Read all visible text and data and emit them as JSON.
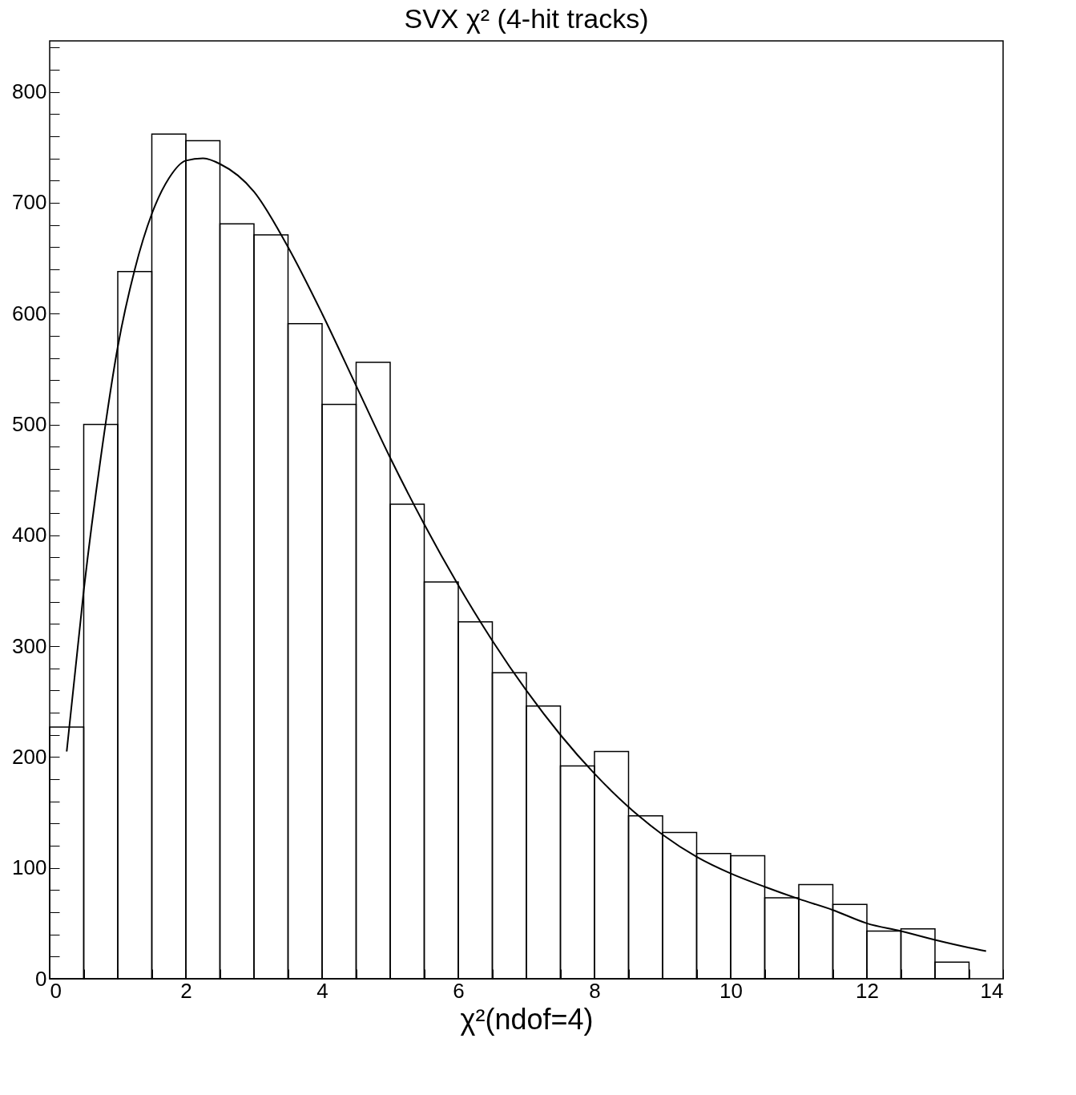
{
  "chart_data": {
    "type": "histogram",
    "title": "SVX χ² (4-hit tracks)",
    "xlabel": "χ²(ndof=4)",
    "bins": [
      0,
      0.5,
      1,
      1.5,
      2,
      2.5,
      3,
      3.5,
      4,
      4.5,
      5,
      5.5,
      6,
      6.5,
      7,
      7.5,
      8,
      8.5,
      9,
      9.5,
      10,
      10.5,
      11,
      11.5,
      12,
      12.5,
      13,
      13.5
    ],
    "values": [
      227,
      500,
      638,
      762,
      756,
      681,
      671,
      591,
      518,
      556,
      428,
      358,
      322,
      276,
      246,
      192,
      205,
      147,
      132,
      113,
      111,
      73,
      85,
      67,
      43,
      45,
      15
    ],
    "color": "#000000",
    "series": [
      {
        "type": "line",
        "color": "#000000",
        "x": [
          0.25,
          0.5,
          0.75,
          1,
          1.25,
          1.5,
          1.75,
          2,
          2.25,
          2.5,
          3,
          3.5,
          4,
          4.5,
          5,
          5.5,
          6,
          6.5,
          7,
          7.5,
          8,
          8.5,
          9,
          9.5,
          10,
          10.5,
          11,
          11.5,
          12,
          12.5,
          13,
          13.5,
          13.75
        ],
        "values": [
          205,
          350,
          470,
          570,
          640,
          690,
          722,
          738,
          740,
          735,
          710,
          660,
          600,
          535,
          470,
          410,
          355,
          305,
          260,
          220,
          185,
          155,
          130,
          110,
          95,
          83,
          72,
          62,
          50,
          43,
          35,
          28,
          25
        ]
      }
    ],
    "xlim": [
      0,
      14
    ],
    "ylim": [
      0,
      846
    ],
    "xticks": [
      0,
      {
        "value": 0.5,
        "label": null
      },
      {
        "value": 1,
        "label": null
      },
      {
        "value": 1.5,
        "label": null
      },
      2,
      {
        "value": 2.5,
        "label": null
      },
      {
        "value": 3,
        "label": null
      },
      {
        "value": 3.5,
        "label": null
      },
      4,
      {
        "value": 4.5,
        "label": null
      },
      {
        "value": 5,
        "label": null
      },
      {
        "value": 5.5,
        "label": null
      },
      6,
      {
        "value": 6.5,
        "label": null
      },
      {
        "value": 7,
        "label": null
      },
      {
        "value": 7.5,
        "label": null
      },
      8,
      {
        "value": 8.5,
        "label": null
      },
      {
        "value": 9,
        "label": null
      },
      {
        "value": 9.5,
        "label": null
      },
      10,
      {
        "value": 10.5,
        "label": null
      },
      {
        "value": 11,
        "label": null
      },
      {
        "value": 11.5,
        "label": null
      },
      12,
      {
        "value": 12.5,
        "label": null
      },
      {
        "value": 13,
        "label": null
      },
      {
        "value": 13.5,
        "label": null
      },
      14
    ],
    "yticks": [
      0,
      {
        "value": 20,
        "label": null
      },
      {
        "value": 40,
        "label": null
      },
      {
        "value": 60,
        "label": null
      },
      {
        "value": 80,
        "label": null
      },
      100,
      {
        "value": 120,
        "label": null
      },
      {
        "value": 140,
        "label": null
      },
      {
        "value": 160,
        "label": null
      },
      {
        "value": 180,
        "label": null
      },
      200,
      {
        "value": 220,
        "label": null
      },
      {
        "value": 240,
        "label": null
      },
      {
        "value": 260,
        "label": null
      },
      {
        "value": 280,
        "label": null
      },
      300,
      {
        "value": 320,
        "label": null
      },
      {
        "value": 340,
        "label": null
      },
      {
        "value": 360,
        "label": null
      },
      {
        "value": 380,
        "label": null
      },
      400,
      {
        "value": 420,
        "label": null
      },
      {
        "value": 440,
        "label": null
      },
      {
        "value": 460,
        "label": null
      },
      {
        "value": 480,
        "label": null
      },
      500,
      {
        "value": 520,
        "label": null
      },
      {
        "value": 540,
        "label": null
      },
      {
        "value": 560,
        "label": null
      },
      {
        "value": 580,
        "label": null
      },
      600,
      {
        "value": 620,
        "label": null
      },
      {
        "value": 640,
        "label": null
      },
      {
        "value": 660,
        "label": null
      },
      {
        "value": 680,
        "label": null
      },
      700,
      {
        "value": 720,
        "label": null
      },
      {
        "value": 740,
        "label": null
      },
      {
        "value": 760,
        "label": null
      },
      {
        "value": 780,
        "label": null
      },
      800,
      {
        "value": 820,
        "label": null
      },
      {
        "value": 840,
        "label": null
      }
    ]
  }
}
